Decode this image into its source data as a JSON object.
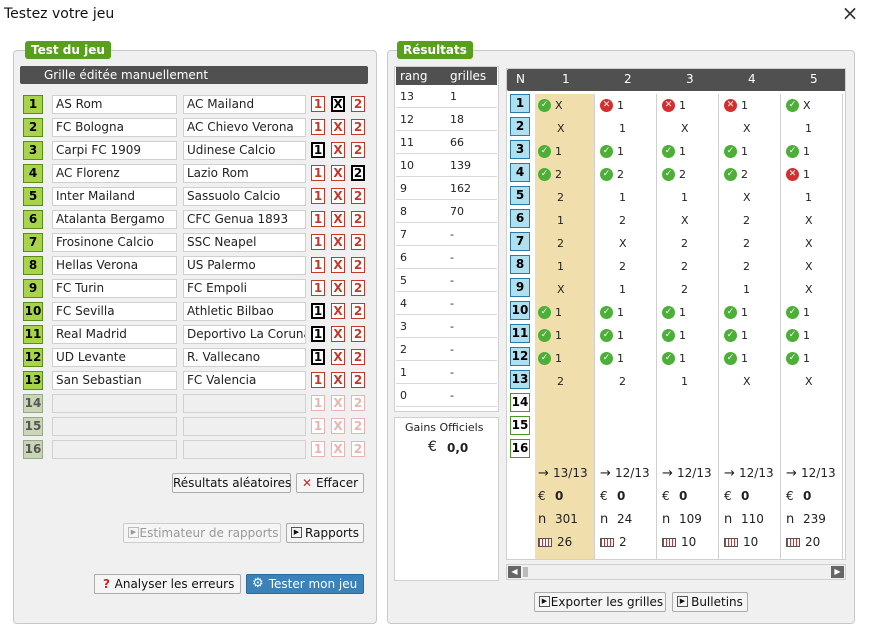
{
  "window": {
    "title": "Testez votre jeu",
    "close_icon": "×"
  },
  "left": {
    "badge": "Test du jeu",
    "header": "Grille éditée manuellement",
    "rows": [
      {
        "n": "1",
        "home": "AS Rom",
        "away": "AC Mailand",
        "sel": [
          false,
          true,
          false
        ],
        "enabled": true
      },
      {
        "n": "2",
        "home": "FC Bologna",
        "away": "AC Chievo Verona",
        "sel": [
          false,
          false,
          false
        ],
        "enabled": true
      },
      {
        "n": "3",
        "home": "Carpi FC 1909",
        "away": "Udinese Calcio",
        "sel": [
          true,
          false,
          false
        ],
        "enabled": true
      },
      {
        "n": "4",
        "home": "AC Florenz",
        "away": "Lazio Rom",
        "sel": [
          false,
          false,
          true
        ],
        "enabled": true
      },
      {
        "n": "5",
        "home": "Inter Mailand",
        "away": "Sassuolo Calcio",
        "sel": [
          false,
          false,
          false
        ],
        "enabled": true
      },
      {
        "n": "6",
        "home": "Atalanta Bergamo",
        "away": "CFC Genua 1893",
        "sel": [
          false,
          false,
          false
        ],
        "enabled": true
      },
      {
        "n": "7",
        "home": "Frosinone Calcio",
        "away": "SSC Neapel",
        "sel": [
          false,
          false,
          false
        ],
        "enabled": true
      },
      {
        "n": "8",
        "home": "Hellas Verona",
        "away": "US Palermo",
        "sel": [
          false,
          false,
          false
        ],
        "enabled": true
      },
      {
        "n": "9",
        "home": "FC Turin",
        "away": "FC Empoli",
        "sel": [
          false,
          false,
          false
        ],
        "enabled": true
      },
      {
        "n": "10",
        "home": "FC Sevilla",
        "away": "Athletic Bilbao",
        "sel": [
          true,
          false,
          false
        ],
        "enabled": true
      },
      {
        "n": "11",
        "home": "Real Madrid",
        "away": "Deportivo La Coruna",
        "sel": [
          true,
          false,
          false
        ],
        "enabled": true
      },
      {
        "n": "12",
        "home": "UD Levante",
        "away": "R. Vallecano",
        "sel": [
          true,
          false,
          false
        ],
        "enabled": true
      },
      {
        "n": "13",
        "home": "San Sebastian",
        "away": "FC Valencia",
        "sel": [
          false,
          false,
          false
        ],
        "enabled": true
      },
      {
        "n": "14",
        "home": "",
        "away": "",
        "sel": [
          false,
          false,
          false
        ],
        "enabled": false
      },
      {
        "n": "15",
        "home": "",
        "away": "",
        "sel": [
          false,
          false,
          false
        ],
        "enabled": false
      },
      {
        "n": "16",
        "home": "",
        "away": "",
        "sel": [
          false,
          false,
          false
        ],
        "enabled": false
      }
    ],
    "choice_labels": [
      "1",
      "X",
      "2"
    ],
    "btn_random": "Résultats aléatoires",
    "btn_clear": "Effacer",
    "btn_estimator": "Estimateur de rapports",
    "btn_reports": "Rapports",
    "btn_analyze": "Analyser les erreurs",
    "btn_test": "Tester mon jeu"
  },
  "right": {
    "badge": "Résultats",
    "rank_header": [
      "rang",
      "grilles"
    ],
    "ranks": [
      [
        "13",
        "1"
      ],
      [
        "12",
        "18"
      ],
      [
        "11",
        "66"
      ],
      [
        "10",
        "139"
      ],
      [
        "9",
        "162"
      ],
      [
        "8",
        "70"
      ],
      [
        "7",
        "-"
      ],
      [
        "6",
        "-"
      ],
      [
        "5",
        "-"
      ],
      [
        "4",
        "-"
      ],
      [
        "3",
        "-"
      ],
      [
        "2",
        "-"
      ],
      [
        "1",
        "-"
      ],
      [
        "0",
        "-"
      ]
    ],
    "gains_label": "Gains Officiels",
    "gains_currency": "€",
    "gains_value": "0,0",
    "grid_header_n": "N",
    "match_nums": [
      "1",
      "2",
      "3",
      "4",
      "5",
      "6",
      "7",
      "8",
      "9",
      "10",
      "11",
      "12",
      "13",
      "14",
      "15",
      "16"
    ],
    "columns": [
      {
        "label": "1",
        "cells": [
          [
            "ok",
            "X"
          ],
          [
            "",
            "X"
          ],
          [
            "ok",
            "1"
          ],
          [
            "ok",
            "2"
          ],
          [
            "",
            "2"
          ],
          [
            "",
            "1"
          ],
          [
            "",
            "2"
          ],
          [
            "",
            "1"
          ],
          [
            "",
            "X"
          ],
          [
            "ok",
            "1"
          ],
          [
            "ok",
            "1"
          ],
          [
            "ok",
            "1"
          ],
          [
            "",
            "2"
          ]
        ],
        "score": "13/13",
        "euro": "0",
        "n": "301",
        "tickets": "26"
      },
      {
        "label": "2",
        "cells": [
          [
            "ko",
            "1"
          ],
          [
            "",
            "1"
          ],
          [
            "ok",
            "1"
          ],
          [
            "ok",
            "2"
          ],
          [
            "",
            "1"
          ],
          [
            "",
            "2"
          ],
          [
            "",
            "X"
          ],
          [
            "",
            "2"
          ],
          [
            "",
            "1"
          ],
          [
            "ok",
            "1"
          ],
          [
            "ok",
            "1"
          ],
          [
            "ok",
            "1"
          ],
          [
            "",
            "2"
          ]
        ],
        "score": "12/13",
        "euro": "0",
        "n": "24",
        "tickets": "2"
      },
      {
        "label": "3",
        "cells": [
          [
            "ko",
            "1"
          ],
          [
            "",
            "X"
          ],
          [
            "ok",
            "1"
          ],
          [
            "ok",
            "2"
          ],
          [
            "",
            "1"
          ],
          [
            "",
            "X"
          ],
          [
            "",
            "2"
          ],
          [
            "",
            "2"
          ],
          [
            "",
            "2"
          ],
          [
            "ok",
            "1"
          ],
          [
            "ok",
            "1"
          ],
          [
            "ok",
            "1"
          ],
          [
            "",
            "1"
          ]
        ],
        "score": "12/13",
        "euro": "0",
        "n": "109",
        "tickets": "10"
      },
      {
        "label": "4",
        "cells": [
          [
            "ko",
            "1"
          ],
          [
            "",
            "X"
          ],
          [
            "ok",
            "1"
          ],
          [
            "ok",
            "2"
          ],
          [
            "",
            "X"
          ],
          [
            "",
            "2"
          ],
          [
            "",
            "2"
          ],
          [
            "",
            "2"
          ],
          [
            "",
            "1"
          ],
          [
            "ok",
            "1"
          ],
          [
            "ok",
            "1"
          ],
          [
            "ok",
            "1"
          ],
          [
            "",
            "X"
          ]
        ],
        "score": "12/13",
        "euro": "0",
        "n": "110",
        "tickets": "10"
      },
      {
        "label": "5",
        "cells": [
          [
            "ok",
            "X"
          ],
          [
            "",
            "1"
          ],
          [
            "ok",
            "1"
          ],
          [
            "ko",
            "1"
          ],
          [
            "",
            "1"
          ],
          [
            "",
            "X"
          ],
          [
            "",
            "X"
          ],
          [
            "",
            "X"
          ],
          [
            "",
            "X"
          ],
          [
            "ok",
            "1"
          ],
          [
            "ok",
            "1"
          ],
          [
            "ok",
            "1"
          ],
          [
            "",
            "X"
          ]
        ],
        "score": "12/13",
        "euro": "0",
        "n": "239",
        "tickets": "20"
      }
    ],
    "btn_export": "Exporter les grilles",
    "btn_bulletins": "Bulletins",
    "stat_n_symbol": "n",
    "stat_euro_symbol": "€"
  },
  "colors": {
    "green": "#5a9e1e",
    "blue_button": "#3a82b8",
    "highlight": "#f0dfad"
  }
}
